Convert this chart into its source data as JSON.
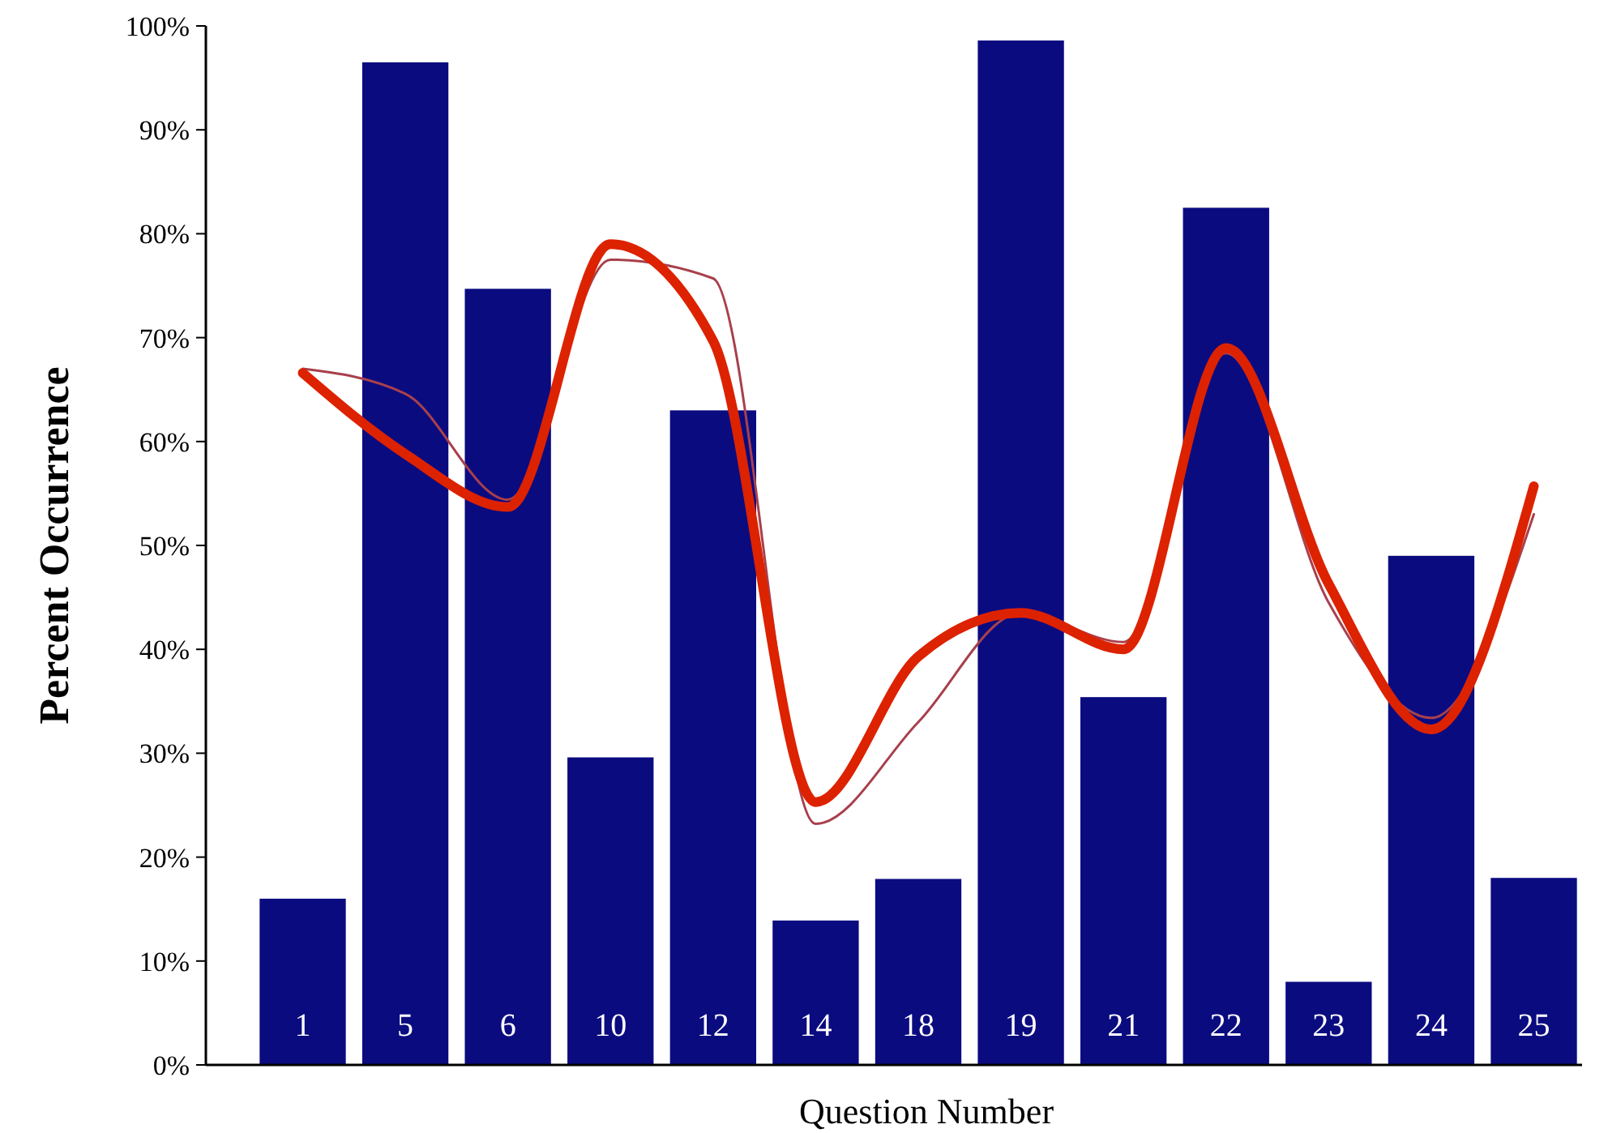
{
  "chart_data": {
    "type": "bar",
    "xlabel": "Question Number",
    "ylabel": "Percent Occurrence",
    "categories": [
      "1",
      "5",
      "6",
      "10",
      "12",
      "14",
      "18",
      "19",
      "21",
      "22",
      "23",
      "24",
      "25"
    ],
    "ylim": [
      0,
      100
    ],
    "yticks": [
      {
        "value": 0,
        "label": "0%"
      },
      {
        "value": 10,
        "label": "10%"
      },
      {
        "value": 20,
        "label": "20%"
      },
      {
        "value": 30,
        "label": "30%"
      },
      {
        "value": 40,
        "label": "40%"
      },
      {
        "value": 50,
        "label": "50%"
      },
      {
        "value": 60,
        "label": "60%"
      },
      {
        "value": 70,
        "label": "70%"
      },
      {
        "value": 80,
        "label": "80%"
      },
      {
        "value": 90,
        "label": "90%"
      },
      {
        "value": 100,
        "label": "100%"
      }
    ],
    "grid": false,
    "series": [
      {
        "color": "#0b0b80",
        "values": [
          16,
          96.5,
          74.7,
          29.6,
          63,
          13.9,
          17.9,
          98.6,
          35.4,
          82.5,
          8,
          49,
          18
        ]
      },
      {
        "type": "line",
        "color": "#a8404c",
        "marker": "none",
        "line_style": "solid",
        "values": [
          67,
          64.6,
          54.4,
          77.5,
          75.7,
          23.2,
          33,
          43.5,
          40.7,
          68.5,
          44.5,
          33.4,
          53
        ]
      },
      {
        "type": "line",
        "color": "#dd2200",
        "marker": "none",
        "line_style": "solid",
        "values": [
          66.6,
          58.8,
          53.7,
          79,
          69.7,
          25.3,
          39.3,
          43.5,
          40,
          69,
          46.3,
          32.3,
          55.7
        ]
      }
    ]
  }
}
